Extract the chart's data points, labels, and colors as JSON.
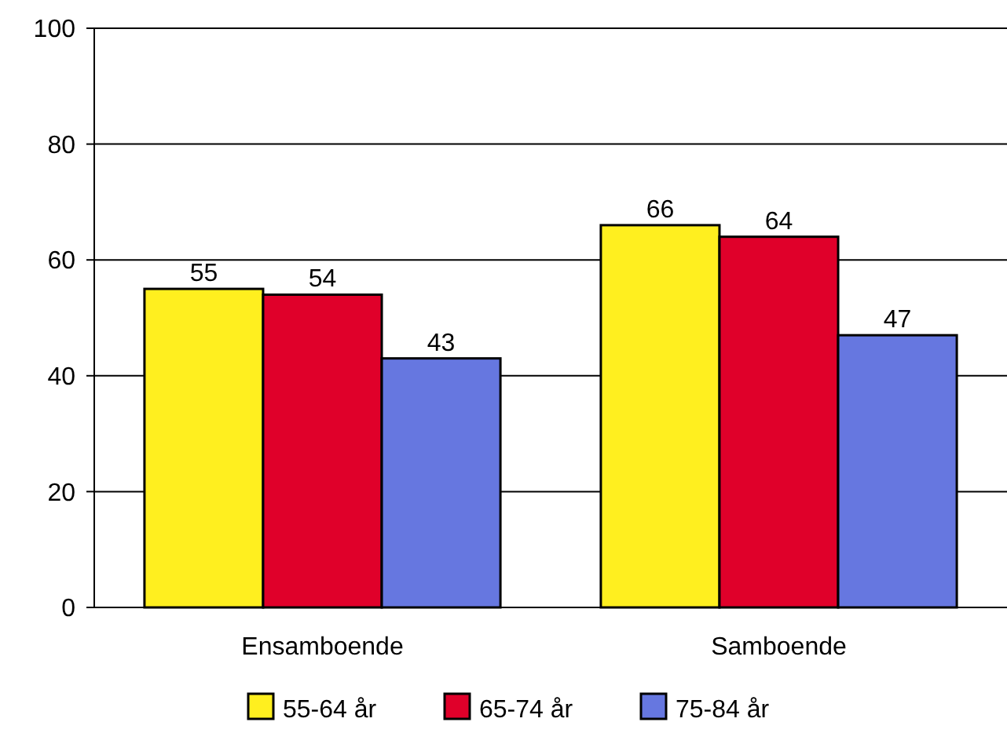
{
  "chart_data": {
    "type": "bar",
    "categories": [
      "Ensamboende",
      "Samboende"
    ],
    "series": [
      {
        "name": "55-64 år",
        "color": "#ffef1f",
        "values": [
          55,
          66
        ]
      },
      {
        "name": "65-74 år",
        "color": "#e0002a",
        "values": [
          54,
          64
        ]
      },
      {
        "name": "75-84 år",
        "color": "#6677e0",
        "values": [
          43,
          47
        ]
      }
    ],
    "ylim": [
      0,
      100
    ],
    "yticks": [
      0,
      20,
      40,
      60,
      80,
      100
    ],
    "grid": "y",
    "legend": "bottom",
    "data_labels": true
  }
}
